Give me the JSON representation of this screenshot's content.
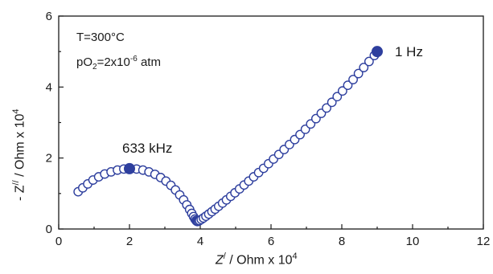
{
  "chart_data": {
    "type": "scatter",
    "xlim": [
      0,
      12
    ],
    "ylim": [
      0,
      6
    ],
    "xticks": [
      "0",
      "2",
      "4",
      "6",
      "8",
      "10",
      "12"
    ],
    "yticks": [
      "0",
      "2",
      "4",
      "6"
    ],
    "xlabel": {
      "base": "Z",
      "sup1": "/",
      "mid": " / Ohm x 10",
      "sup2": "4"
    },
    "ylabel": {
      "base": "- Z",
      "sup1": "//",
      "mid": " / Ohm x 10",
      "sup2": "4"
    },
    "conditions": {
      "temperature": "T=300°C",
      "po2_prefix": "pO",
      "po2_sub": "2",
      "po2_mid": "=2x10",
      "po2_exp": "-6",
      "po2_unit": " atm"
    },
    "annotations": [
      {
        "text": "633 kHz",
        "x": 2.0,
        "y": 1.7
      },
      {
        "text": "1 Hz",
        "x": 9.0,
        "y": 5.0
      }
    ],
    "marker_color": "#2e3f9e",
    "series": [
      {
        "x": [
          0.55,
          0.68,
          0.82,
          0.97,
          1.13,
          1.3,
          1.48,
          1.66,
          1.84,
          2.02,
          2.2,
          2.38,
          2.55,
          2.72,
          2.88,
          3.03,
          3.17,
          3.3,
          3.42,
          3.53,
          3.62,
          3.7,
          3.76,
          3.81,
          3.85,
          3.88,
          3.9,
          3.92,
          3.95,
          3.98,
          4.03,
          4.09,
          4.16,
          4.24,
          4.33,
          4.42,
          4.52,
          4.63,
          4.74,
          4.86,
          4.98,
          5.11,
          5.24,
          5.37,
          5.51,
          5.65,
          5.79,
          5.93,
          6.07,
          6.22,
          6.37,
          6.52,
          6.67,
          6.82,
          6.97,
          7.12,
          7.27,
          7.42,
          7.57,
          7.72,
          7.87,
          8.02,
          8.17,
          8.32,
          8.47,
          8.62,
          8.77,
          8.92
        ],
        "y": [
          1.05,
          1.16,
          1.27,
          1.38,
          1.47,
          1.55,
          1.61,
          1.66,
          1.69,
          1.7,
          1.69,
          1.66,
          1.61,
          1.54,
          1.45,
          1.35,
          1.23,
          1.1,
          0.96,
          0.82,
          0.68,
          0.55,
          0.44,
          0.35,
          0.28,
          0.24,
          0.22,
          0.21,
          0.22,
          0.24,
          0.27,
          0.31,
          0.36,
          0.42,
          0.49,
          0.56,
          0.64,
          0.73,
          0.82,
          0.92,
          1.02,
          1.13,
          1.24,
          1.35,
          1.47,
          1.59,
          1.71,
          1.84,
          1.97,
          2.1,
          2.24,
          2.38,
          2.52,
          2.66,
          2.81,
          2.96,
          3.11,
          3.26,
          3.41,
          3.57,
          3.73,
          3.89,
          4.05,
          4.21,
          4.38,
          4.55,
          4.72,
          4.89
        ]
      }
    ]
  }
}
